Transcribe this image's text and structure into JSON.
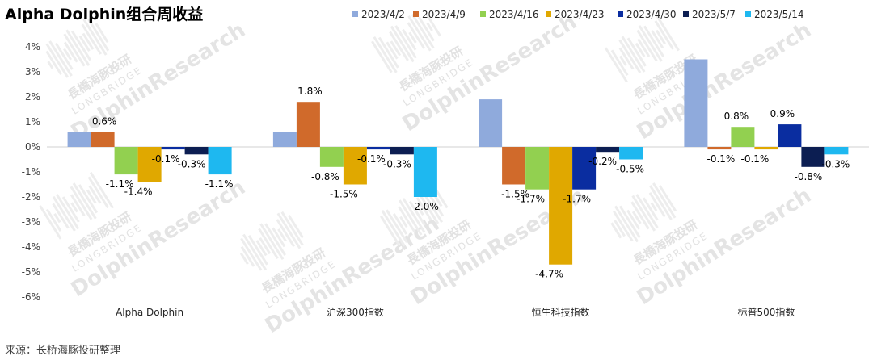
{
  "chart_data": {
    "type": "bar",
    "title": "Alpha Dolphin组合周收益",
    "xlabel": "",
    "ylabel": "",
    "ylim": [
      -6,
      4
    ],
    "yticks": [
      4,
      3,
      2,
      1,
      0,
      -1,
      -2,
      -3,
      -4,
      -5,
      -6
    ],
    "ytick_labels": [
      "4%",
      "3%",
      "2%",
      "1%",
      "0%",
      "-1%",
      "-2%",
      "-3%",
      "-4%",
      "-5%",
      "-6%"
    ],
    "legend_position": "top-right",
    "grid": false,
    "categories": [
      "Alpha Dolphin",
      "沪深300指数",
      "恒生科技指数",
      "标普500指数"
    ],
    "series": [
      {
        "name": "2023/4/2",
        "color": "#8FAADC",
        "values": [
          0.6,
          0.6,
          1.9,
          3.5
        ],
        "labels": [
          "",
          "",
          "",
          ""
        ]
      },
      {
        "name": "2023/4/9",
        "color": "#D06A2B",
        "values": [
          0.6,
          1.8,
          -1.5,
          -0.1
        ],
        "labels": [
          "0.6%",
          "1.8%",
          "-1.5%",
          "-0.1%"
        ]
      },
      {
        "name": "2023/4/16",
        "color": "#92D050",
        "values": [
          -1.1,
          -0.8,
          -1.7,
          0.8
        ],
        "labels": [
          "-1.1%",
          "-0.8%",
          "-1.7%",
          "0.8%"
        ]
      },
      {
        "name": "2023/4/23",
        "color": "#E0A800",
        "values": [
          -1.4,
          -1.5,
          -4.7,
          -0.1
        ],
        "labels": [
          "-1.4%",
          "-1.5%",
          "-4.7%",
          "-0.1%"
        ]
      },
      {
        "name": "2023/4/30",
        "color": "#0A2DA0",
        "values": [
          -0.1,
          -0.1,
          -1.7,
          0.9
        ],
        "labels": [
          "-0.1%",
          "-0.1%",
          "-1.7%",
          "0.9%"
        ]
      },
      {
        "name": "2023/5/7",
        "color": "#0C1E52",
        "values": [
          -0.3,
          -0.3,
          -0.2,
          -0.8
        ],
        "labels": [
          "-0.3%",
          "-0.3%",
          "-0.2%",
          "-0.8%"
        ]
      },
      {
        "name": "2023/5/14",
        "color": "#1EB8F0",
        "values": [
          -1.1,
          -2.0,
          -0.5,
          -0.3
        ],
        "labels": [
          "-1.1%",
          "-2.0%",
          "-0.5%",
          "-0.3%"
        ]
      }
    ],
    "source": "来源：长桥海豚投研整理",
    "watermark": [
      "長橋海豚投研",
      "LONGBRIDGE",
      "DolphinResearch"
    ]
  }
}
